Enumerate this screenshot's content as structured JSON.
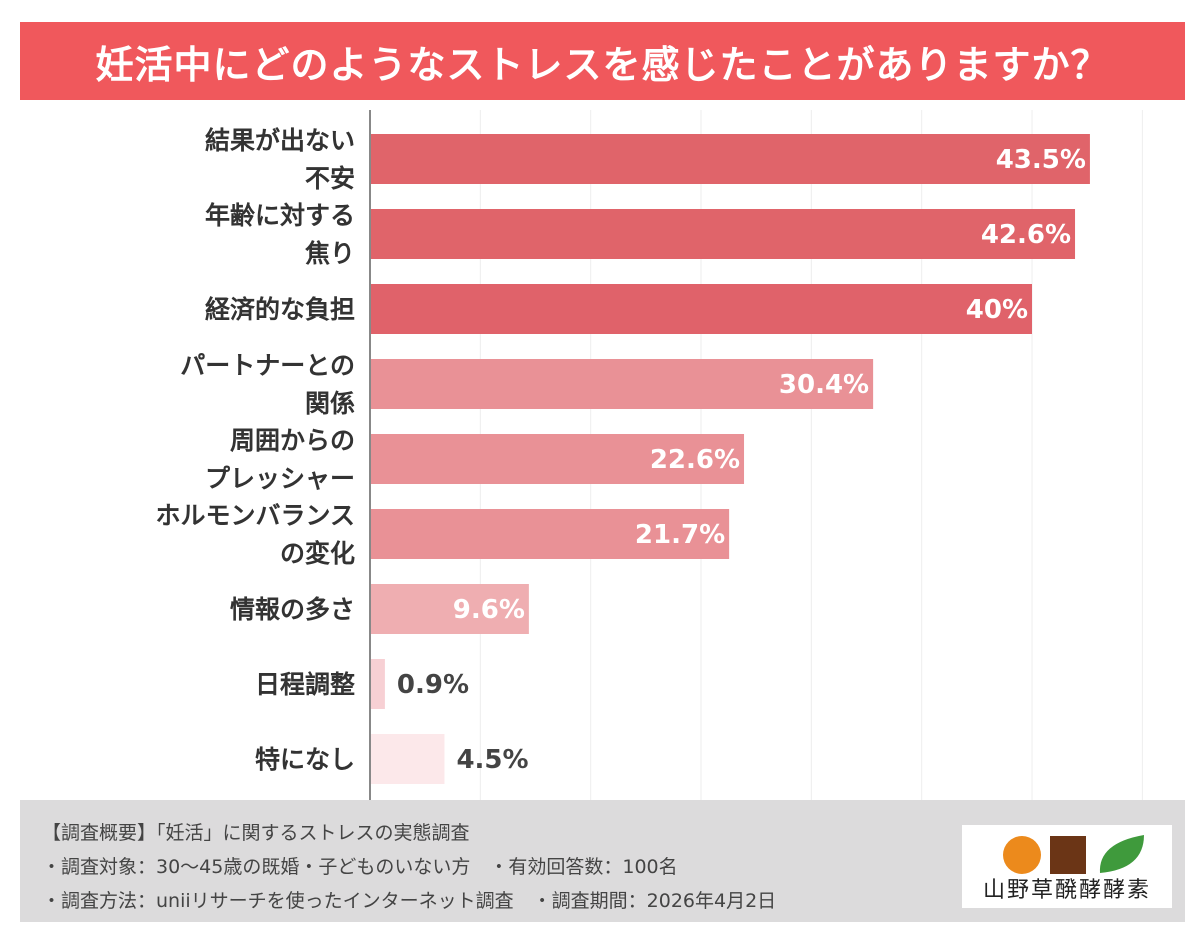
{
  "title": "妊活中にどのようなストレスを感じたことがありますか？",
  "chart_data": {
    "type": "bar",
    "orientation": "horizontal",
    "categories": [
      [
        "結果が出ない",
        "不安"
      ],
      [
        "年齢に対する",
        "焦り"
      ],
      [
        "経済的な負担"
      ],
      [
        "パートナーとの",
        "関係"
      ],
      [
        "周囲からの",
        "プレッシャー"
      ],
      [
        "ホルモンバランス",
        "の変化"
      ],
      [
        "情報の多さ"
      ],
      [
        "日程調整"
      ],
      [
        "特になし"
      ]
    ],
    "values": [
      43.5,
      42.6,
      40,
      30.4,
      22.6,
      21.7,
      9.6,
      0.9,
      4.5
    ],
    "value_labels": [
      "43.5%",
      "42.6%",
      "40%",
      "30.4%",
      "22.6%",
      "21.7%",
      "9.6%",
      "0.9%",
      "4.5%"
    ],
    "bar_colors": [
      "#e0646a",
      "#e0646a",
      "#e0626a",
      "#e99196",
      "#e99196",
      "#e99196",
      "#efaeb1",
      "#f7d0d4",
      "#fce8ea"
    ],
    "label_colors": [
      "#ffffff",
      "#ffffff",
      "#ffffff",
      "#ffffff",
      "#ffffff",
      "#ffffff",
      "#ffffff",
      "#444444",
      "#444444"
    ],
    "xlim": [
      0,
      47
    ],
    "grid": true,
    "grid_step": 6.667,
    "unit": "%"
  },
  "footer": {
    "heading": "【調査概要】「妊活」に関するストレスの実態調査",
    "line1": "・調査対象：30～45歳の既婚・子どものいない方　・有効回答数：100名",
    "line2": "・調査方法：uniiリサーチを使ったインターネット調査　・調査期間：2026年4月2日"
  },
  "logo": {
    "text": "山野草醗酵酵素",
    "colors": [
      "#ec8a1c",
      "#6b3516",
      "#3f9a3c"
    ]
  },
  "colors": {
    "title_bg": "#f0585c",
    "footer_bg": "#dcdbdc"
  }
}
